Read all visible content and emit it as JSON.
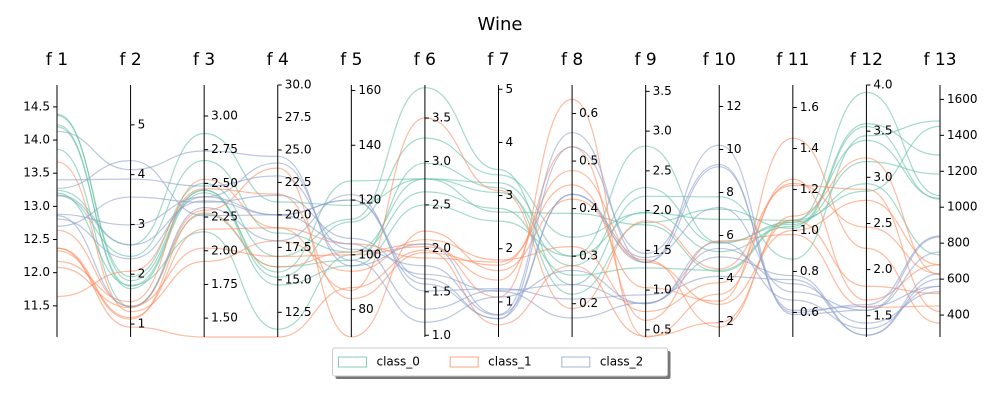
{
  "chart_data": {
    "type": "parallel",
    "title": "Wine",
    "legend": "lower center",
    "axes": [
      {
        "name": "f 1",
        "ylim": [
          11.03,
          14.83
        ],
        "yticks": [
          11.5,
          {
            "value": 12,
            "label": "12.0"
          },
          12.5,
          {
            "value": 13,
            "label": "13.0"
          },
          13.5,
          {
            "value": 14,
            "label": "14.0"
          },
          14.5
        ]
      },
      {
        "name": "f 2",
        "ylim": [
          0.74,
          5.8
        ],
        "yticks": [
          1,
          2,
          3,
          4,
          5
        ]
      },
      {
        "name": "f 3",
        "ylim": [
          1.36,
          3.23
        ],
        "yticks": [
          {
            "value": 1.5,
            "label": "1.50"
          },
          {
            "value": 1.75,
            "label": "1.75"
          },
          {
            "value": 2,
            "label": "2.00"
          },
          {
            "value": 2.25,
            "label": "2.25"
          },
          {
            "value": 2.5,
            "label": "2.50"
          },
          {
            "value": 2.75,
            "label": "2.75"
          },
          {
            "value": 3,
            "label": "3.00"
          }
        ]
      },
      {
        "name": "f 4",
        "ylim": [
          10.6,
          30
        ],
        "yticks": [
          12.5,
          {
            "value": 15,
            "label": "15.0"
          },
          17.5,
          {
            "value": 20,
            "label": "20.0"
          },
          22.5,
          {
            "value": 25,
            "label": "25.0"
          },
          27.5,
          {
            "value": 30,
            "label": "30.0"
          }
        ]
      },
      {
        "name": "f 5",
        "ylim": [
          70,
          162
        ],
        "yticks": [
          80,
          100,
          120,
          140,
          160
        ]
      },
      {
        "name": "f 6",
        "ylim": [
          0.98,
          3.88
        ],
        "yticks": [
          {
            "value": 1,
            "label": "1.0"
          },
          1.5,
          {
            "value": 2,
            "label": "2.0"
          },
          2.5,
          {
            "value": 3,
            "label": "3.0"
          },
          3.5
        ]
      },
      {
        "name": "f 7",
        "ylim": [
          0.34,
          5.08
        ],
        "yticks": [
          1,
          2,
          3,
          4,
          5
        ]
      },
      {
        "name": "f 8",
        "ylim": [
          0.13,
          0.66
        ],
        "yticks": [
          0.2,
          0.3,
          0.4,
          0.5,
          0.6
        ]
      },
      {
        "name": "f 9",
        "ylim": [
          0.41,
          3.58
        ],
        "yticks": [
          0.5,
          {
            "value": 1,
            "label": "1.0"
          },
          1.5,
          {
            "value": 2,
            "label": "2.0"
          },
          2.5,
          {
            "value": 3,
            "label": "3.0"
          },
          3.5
        ]
      },
      {
        "name": "f 10",
        "ylim": [
          1.28,
          13
        ],
        "yticks": [
          2,
          4,
          6,
          8,
          10,
          12
        ]
      },
      {
        "name": "f 11",
        "ylim": [
          0.48,
          1.71
        ],
        "yticks": [
          0.6,
          0.8,
          {
            "value": 1,
            "label": "1.0"
          },
          1.2,
          1.4,
          1.6
        ]
      },
      {
        "name": "f 12",
        "ylim": [
          1.27,
          4
        ],
        "yticks": [
          1.5,
          {
            "value": 2,
            "label": "2.0"
          },
          2.5,
          {
            "value": 3,
            "label": "3.0"
          },
          3.5,
          {
            "value": 4,
            "label": "4.0"
          }
        ]
      },
      {
        "name": "f 13",
        "ylim": [
          278,
          1680
        ],
        "yticks": [
          400,
          600,
          800,
          1000,
          1200,
          1400,
          1600
        ]
      }
    ],
    "series": [
      {
        "name": "class_0",
        "color": "#66c2a5",
        "lines": [
          [
            14.23,
            1.71,
            2.43,
            15.6,
            127,
            2.8,
            3.06,
            0.28,
            2.29,
            5.64,
            1.04,
            3.92,
            1065
          ],
          [
            13.2,
            1.78,
            2.14,
            11.2,
            100,
            2.65,
            2.76,
            0.26,
            1.28,
            4.38,
            1.05,
            3.4,
            1050
          ],
          [
            13.16,
            2.36,
            2.67,
            18.6,
            101,
            2.8,
            3.24,
            0.3,
            2.81,
            5.68,
            1.03,
            3.17,
            1185
          ],
          [
            14.37,
            1.95,
            2.5,
            16.8,
            113,
            3.85,
            3.49,
            0.24,
            2.18,
            7.8,
            0.86,
            3.45,
            1480
          ],
          [
            13.24,
            2.59,
            2.87,
            21,
            118,
            2.8,
            2.69,
            0.39,
            1.82,
            4.32,
            1.04,
            2.93,
            735
          ],
          [
            14.2,
            1.76,
            2.45,
            15.2,
            112,
            3.27,
            3.39,
            0.34,
            1.97,
            6.75,
            1.05,
            2.85,
            1450
          ],
          [
            14.39,
            1.87,
            2.45,
            14.6,
            96,
            2.5,
            2.52,
            0.3,
            1.98,
            5.25,
            1.02,
            3.58,
            1290
          ],
          [
            13.86,
            1.35,
            2.27,
            16,
            98,
            2.98,
            3.15,
            0.22,
            1.85,
            7.22,
            1.01,
            3.55,
            1045
          ]
        ]
      },
      {
        "name": "class_1",
        "color": "#fc8d62",
        "lines": [
          [
            12.37,
            0.94,
            1.36,
            10.6,
            88,
            1.98,
            0.57,
            0.28,
            0.42,
            1.95,
            1.05,
            1.82,
            520
          ],
          [
            12.33,
            1.1,
            2.28,
            16,
            101,
            2.05,
            1.09,
            0.63,
            0.41,
            3.27,
            1.25,
            1.67,
            680
          ],
          [
            12.64,
            1.36,
            2.02,
            16.8,
            100,
            2.02,
            1.41,
            0.53,
            0.62,
            5.75,
            0.98,
            1.59,
            450
          ],
          [
            13.67,
            1.25,
            1.92,
            18,
            94,
            2.1,
            1.79,
            0.32,
            0.73,
            3.8,
            1.23,
            2.46,
            630
          ],
          [
            12.37,
            1.13,
            2.16,
            19,
            87,
            3.5,
            3.1,
            0.19,
            1.87,
            4.45,
            1.22,
            2.87,
            420
          ],
          [
            12.17,
            1.45,
            2.53,
            19,
            104,
            1.89,
            1.75,
            0.45,
            1.03,
            2.95,
            1.45,
            2.23,
            355
          ],
          [
            11.64,
            2.06,
            2.46,
            21.6,
            84,
            1.95,
            1.69,
            0.48,
            1.35,
            2.8,
            1,
            2.75,
            680
          ],
          [
            12.08,
            1.33,
            2.3,
            23.6,
            70,
            2.2,
            1.59,
            0.42,
            1.38,
            1.74,
            1.07,
            3.21,
            625
          ]
        ]
      },
      {
        "name": "class_2",
        "color": "#8da0cb",
        "lines": [
          [
            12.86,
            1.35,
            2.32,
            18,
            122,
            1.51,
            1.25,
            0.21,
            0.94,
            4.1,
            0.76,
            1.29,
            630
          ],
          [
            12.88,
            2.99,
            2.4,
            20,
            104,
            1.3,
            1.22,
            0.24,
            0.83,
            5.4,
            0.74,
            1.42,
            530
          ],
          [
            12.81,
            2.31,
            2.4,
            24,
            98,
            1.15,
            1.09,
            0.27,
            0.83,
            5.7,
            0.66,
            1.36,
            560
          ],
          [
            12.7,
            3.55,
            2.36,
            21.5,
            106,
            1.7,
            1.2,
            0.17,
            0.84,
            5,
            0.78,
            1.29,
            600
          ],
          [
            13.4,
            3.91,
            2.48,
            23,
            102,
            1.8,
            0.75,
            0.43,
            1.41,
            7.3,
            0.7,
            1.56,
            750
          ],
          [
            13.27,
            4.28,
            2.26,
            20,
            120,
            1.59,
            0.69,
            0.43,
            1.35,
            10.2,
            0.59,
            1.56,
            835
          ],
          [
            13.17,
            2.59,
            2.37,
            20,
            120,
            1.65,
            0.68,
            0.53,
            1.46,
            9.3,
            0.6,
            1.62,
            840
          ],
          [
            14.13,
            4.1,
            2.74,
            24.5,
            96,
            2.05,
            0.76,
            0.56,
            1.35,
            9.2,
            0.61,
            1.6,
            560
          ]
        ]
      }
    ]
  }
}
